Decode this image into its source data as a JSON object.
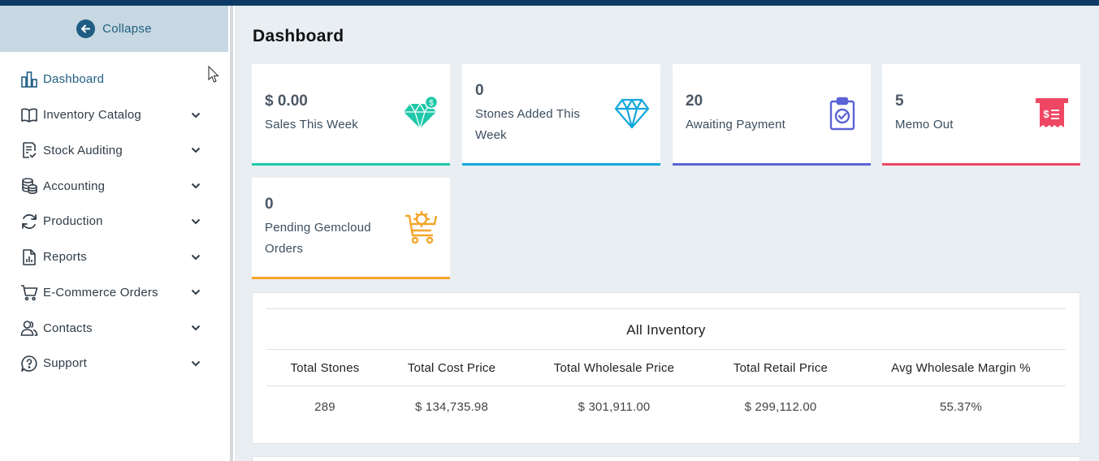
{
  "sidebar": {
    "collapse_label": "Collapse",
    "items": [
      {
        "label": "Dashboard",
        "icon": "bar-chart-icon",
        "active": true,
        "expandable": false
      },
      {
        "label": "Inventory Catalog",
        "icon": "book-icon",
        "expandable": true
      },
      {
        "label": "Stock Auditing",
        "icon": "checklist-icon",
        "expandable": true
      },
      {
        "label": "Accounting",
        "icon": "coins-icon",
        "expandable": true
      },
      {
        "label": "Production",
        "icon": "refresh-icon",
        "expandable": true
      },
      {
        "label": "Reports",
        "icon": "report-icon",
        "expandable": true
      },
      {
        "label": "E-Commerce Orders",
        "icon": "cart-icon",
        "expandable": true
      },
      {
        "label": "Contacts",
        "icon": "users-icon",
        "expandable": true
      },
      {
        "label": "Support",
        "icon": "help-icon",
        "expandable": true
      }
    ]
  },
  "main": {
    "title": "Dashboard",
    "cards": [
      {
        "value": "$ 0.00",
        "label": "Sales This Week",
        "icon": "diamond-dollar-icon",
        "color": "#1fc8a8"
      },
      {
        "value": "0",
        "label": "Stones Added This Week",
        "icon": "diamond-icon",
        "color": "#12a7dc"
      },
      {
        "value": "20",
        "label": "Awaiting Payment",
        "icon": "clipboard-check-icon",
        "color": "#5b63d6"
      },
      {
        "value": "5",
        "label": "Memo Out",
        "icon": "receipt-icon",
        "color": "#ef4763"
      },
      {
        "value": "0",
        "label": "Pending Gemcloud Orders",
        "icon": "gem-cart-icon",
        "color": "#f4a62a"
      }
    ],
    "inventory": {
      "title": "All Inventory",
      "headers": [
        "Total Stones",
        "Total Cost Price",
        "Total Wholesale Price",
        "Total Retail Price",
        "Avg Wholesale Margin %"
      ],
      "values": [
        "289",
        "$ 134,735.98",
        "$ 301,911.00",
        "$ 299,112.00",
        "55.37%"
      ]
    }
  }
}
